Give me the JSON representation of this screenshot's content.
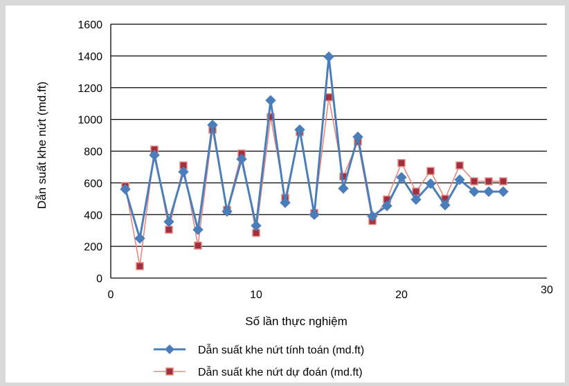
{
  "chart_data": {
    "type": "line",
    "title": "",
    "xlabel": "Số lần thực nghiệm",
    "ylabel": "Dẫn suất khe nứt (md.ft)",
    "xlim": [
      0,
      30
    ],
    "ylim": [
      0,
      1600
    ],
    "x_ticks": [
      0,
      10,
      20,
      30
    ],
    "y_ticks": [
      0,
      200,
      400,
      600,
      800,
      1000,
      1200,
      1400,
      1600
    ],
    "grid": "horizontal",
    "legend_position": "bottom",
    "x": [
      1,
      2,
      3,
      4,
      5,
      6,
      7,
      8,
      9,
      10,
      11,
      12,
      13,
      14,
      15,
      16,
      17,
      18,
      19,
      20,
      21,
      22,
      23,
      24,
      25,
      26,
      27
    ],
    "series": [
      {
        "name": "Dẫn suất khe nứt tính toán (md.ft)",
        "color": "#4a7ebb",
        "marker": "diamond",
        "values": [
          560,
          250,
          775,
          355,
          670,
          305,
          965,
          420,
          750,
          330,
          1120,
          475,
          935,
          400,
          1395,
          565,
          890,
          390,
          455,
          635,
          495,
          595,
          460,
          620,
          545,
          545,
          545
        ]
      },
      {
        "name": "Dẫn suất khe nứt dự đoán (md.ft)",
        "color": "#e8877e",
        "marker_fill": "#a03040",
        "marker": "square",
        "values": [
          580,
          75,
          810,
          305,
          710,
          205,
          935,
          430,
          785,
          285,
          1015,
          505,
          920,
          410,
          1140,
          640,
          860,
          360,
          495,
          725,
          545,
          675,
          500,
          710,
          610,
          610,
          610
        ]
      }
    ]
  }
}
